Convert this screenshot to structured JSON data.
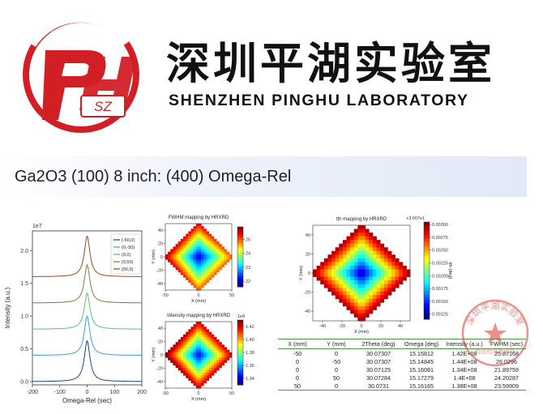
{
  "logo": {
    "monogram": "PH",
    "badge": "SZ",
    "chinese_name": "深圳平湖实验室",
    "english_name": "SHENZHEN PINGHU LABORATORY",
    "red": "#d21f26"
  },
  "slide": {
    "title": "Ga2O3 (100) 8 inch: (400) Omega-Rel"
  },
  "colors": {
    "title_band": "#e1e9f7",
    "table_rule": "#4a9a4a"
  },
  "chart_data": [
    {
      "type": "line",
      "title": "",
      "xlabel": "Omega-Rel (sec)",
      "ylabel": "Intensity (a.u.)",
      "y_exponent": "1e7",
      "xlim": [
        -200,
        200
      ],
      "ylim": [
        -0.05,
        2.3
      ],
      "x_ticks": [
        "-200",
        "-100",
        "0",
        "100",
        "200"
      ],
      "y_ticks": [
        "0.0",
        "0.5",
        "1.0",
        "1.5",
        "2.0"
      ],
      "legend_position": "top-right",
      "peak_center": 0,
      "peak_fwhm": 25,
      "series": [
        {
          "name": "(-50,0)",
          "offset": 0.0,
          "peak": 0.62,
          "color": "#1f3f8f"
        },
        {
          "name": "(0,-50)",
          "offset": 0.4,
          "peak": 0.6,
          "color": "#3b9fd6"
        },
        {
          "name": "(0,0)",
          "offset": 0.8,
          "peak": 0.55,
          "color": "#5fbf7c"
        },
        {
          "name": "(0,50)",
          "offset": 1.2,
          "peak": 0.58,
          "color": "#7a7f3a"
        },
        {
          "name": "(50,0)",
          "offset": 1.6,
          "peak": 0.62,
          "color": "#9a4a2a"
        }
      ]
    },
    {
      "type": "heatmap",
      "title": "FWHM mapping by HRXRD",
      "xlabel": "X (mm)",
      "ylabel": "Y (mm)",
      "x_ticks": [
        "-50",
        "0",
        "50"
      ],
      "y_ticks": [
        "40",
        "20",
        "0",
        "-20",
        "-40"
      ],
      "colorbar_label": "FWHM (sec)",
      "colorbar_ticks": [
        "25",
        "24",
        "23",
        "22"
      ],
      "range": [
        21.6,
        25.9
      ]
    },
    {
      "type": "heatmap",
      "title": "Intensity mapping by HRXRD",
      "xlabel": "X (mm)",
      "ylabel": "Y (mm)",
      "x_ticks": [
        "-50",
        "0",
        "50"
      ],
      "y_ticks": [
        "40",
        "20",
        "0",
        "-20",
        "-40"
      ],
      "colorbar_label": "Intensity (a.u.)",
      "colorbar_exponent": "1e8",
      "colorbar_ticks": [
        "1.42",
        "1.40",
        "1.38",
        "1.36",
        "1.34"
      ],
      "range": [
        1.33,
        1.43
      ]
    },
    {
      "type": "heatmap",
      "title": "tth mapping by HRXRD",
      "xlabel": "X (mm)",
      "ylabel": "Y (mm)",
      "x_ticks": [
        "-40",
        "-20",
        "0",
        "20",
        "40"
      ],
      "y_ticks": [
        "40",
        "20",
        "0",
        "-20",
        "-40"
      ],
      "colorbar_label": "tth (deg)",
      "colorbar_offset": "+3.007e1",
      "colorbar_ticks": [
        "0.00300",
        "0.00275",
        "0.00250",
        "0.00225",
        "0.00200",
        "0.00175",
        "0.00150",
        "0.00125"
      ],
      "range": [
        0.00115,
        0.00305
      ]
    },
    {
      "type": "table",
      "headers": [
        "X (mm)",
        "Y (mm)",
        "2Theta (deg)",
        "Omega (deg)",
        "Intensity (a.u.)",
        "FWHM (sec)"
      ],
      "rows": [
        [
          "-50",
          "0",
          "30.07307",
          "15.15812",
          "1.42E+08",
          "25.87168"
        ],
        [
          "0",
          "-50",
          "30.07307",
          "15.14845",
          "1.44E+08",
          "26.0296"
        ],
        [
          "0",
          "0",
          "30.07125",
          "15.16081",
          "1.34E+08",
          "21.89759"
        ],
        [
          "0",
          "50",
          "30.07284",
          "15.17279",
          "1.4E+08",
          "24.20287"
        ],
        [
          "50",
          "0",
          "30.0731",
          "15.16165",
          "1.38E+08",
          "23.59909"
        ]
      ]
    }
  ],
  "stamp": {
    "text": "深圳平湖实验室",
    "subtext": "检验检测专用章"
  }
}
